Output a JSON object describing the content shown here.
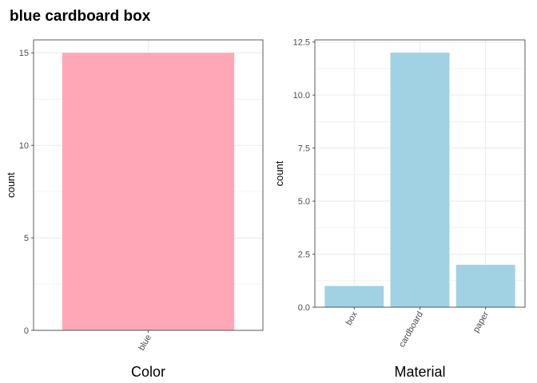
{
  "title": "blue cardboard box",
  "colors": {
    "panel_border": "#333333",
    "grid": "#ebebeb",
    "tick_text": "#4d4d4d",
    "color_bar": "#ffa7b6",
    "material_bar": "#a1d2e3"
  },
  "chart_data": [
    {
      "type": "bar",
      "categories": [
        "blue"
      ],
      "values": [
        15
      ],
      "xlabel": "Color",
      "ylabel": "count",
      "ylim": [
        0,
        15.7
      ],
      "yticks": [
        0,
        5,
        10,
        15
      ],
      "ytick_labels": [
        "0",
        "5",
        "10",
        "15"
      ],
      "xtick_rotation": "60",
      "grid": true,
      "bar_color": "#ffa7b6"
    },
    {
      "type": "bar",
      "categories": [
        "box",
        "cardboard",
        "paper"
      ],
      "values": [
        1,
        12,
        2
      ],
      "xlabel": "Material",
      "ylabel": "count",
      "ylim": [
        0,
        12.6
      ],
      "yticks": [
        0,
        2.5,
        5,
        7.5,
        10,
        12.5
      ],
      "ytick_labels": [
        "0.0",
        "2.5",
        "5.0",
        "7.5",
        "10.0",
        "12.5"
      ],
      "xtick_rotation": "60",
      "grid": true,
      "bar_color": "#a1d2e3"
    }
  ]
}
